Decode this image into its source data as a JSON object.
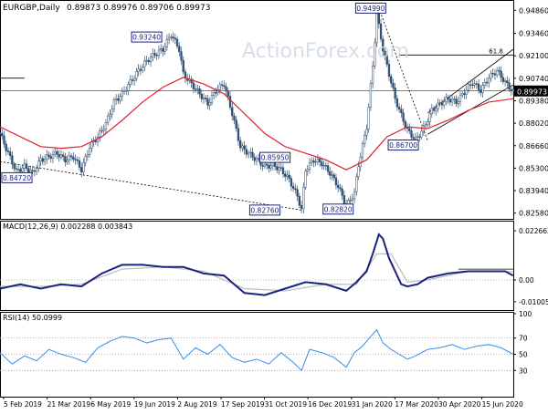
{
  "header": {
    "symbol": "EURGBP,Daily",
    "ohlc": "0.89873 0.89976 0.89706 0.89973"
  },
  "watermark": "ActionForex.com",
  "colors": {
    "price": "#2f4f6f",
    "ma": "#e0202a",
    "macd": "#1a237e",
    "signal": "#bdbdbd",
    "rsi": "#3a8ee6",
    "grid_dots": "#9e9e9e",
    "badge_border": "#1a237e",
    "current_price_bg": "#000000"
  },
  "chart_data": [
    {
      "type": "line",
      "name": "price",
      "title": "EURGBP,Daily",
      "y_ticks": [
        "0.94860",
        "0.93460",
        "0.92100",
        "0.90740",
        "0.89380",
        "0.88020",
        "0.86660",
        "0.85300",
        "0.83940",
        "0.82580"
      ],
      "ylim": [
        0.8245,
        0.9515
      ],
      "current_price_label": "0.89973",
      "fib_label": "61.8",
      "price_badges": [
        {
          "text": "0.93240",
          "x": 72,
          "y": 0.9324
        },
        {
          "text": "0.94990",
          "x": 182,
          "y": 0.9499
        },
        {
          "text": "0.84720",
          "x": -4,
          "y": 0.8472
        },
        {
          "text": "0.85950",
          "x": 135,
          "y": 0.8595
        },
        {
          "text": "0.82760",
          "x": 130,
          "y": 0.8276
        },
        {
          "text": "0.82820",
          "x": 166,
          "y": 0.8282
        },
        {
          "text": "0.86700",
          "x": 198,
          "y": 0.867
        }
      ],
      "close": [
        [
          0,
          0.874
        ],
        [
          4,
          0.862
        ],
        [
          8,
          0.851
        ],
        [
          12,
          0.854
        ],
        [
          16,
          0.85
        ],
        [
          20,
          0.858
        ],
        [
          24,
          0.86
        ],
        [
          28,
          0.862
        ],
        [
          32,
          0.858
        ],
        [
          36,
          0.86
        ],
        [
          40,
          0.852
        ],
        [
          44,
          0.866
        ],
        [
          48,
          0.872
        ],
        [
          52,
          0.88
        ],
        [
          56,
          0.893
        ],
        [
          60,
          0.898
        ],
        [
          64,
          0.905
        ],
        [
          68,
          0.912
        ],
        [
          72,
          0.918
        ],
        [
          76,
          0.922
        ],
        [
          80,
          0.925
        ],
        [
          84,
          0.934
        ],
        [
          88,
          0.925
        ],
        [
          90,
          0.91
        ],
        [
          94,
          0.904
        ],
        [
          98,
          0.898
        ],
        [
          102,
          0.892
        ],
        [
          106,
          0.9
        ],
        [
          110,
          0.904
        ],
        [
          114,
          0.886
        ],
        [
          118,
          0.866
        ],
        [
          122,
          0.862
        ],
        [
          126,
          0.858
        ],
        [
          130,
          0.854
        ],
        [
          134,
          0.855
        ],
        [
          138,
          0.852
        ],
        [
          142,
          0.846
        ],
        [
          146,
          0.836
        ],
        [
          148,
          0.828
        ],
        [
          150,
          0.852
        ],
        [
          154,
          0.858
        ],
        [
          158,
          0.856
        ],
        [
          162,
          0.85
        ],
        [
          166,
          0.842
        ],
        [
          170,
          0.83
        ],
        [
          174,
          0.838
        ],
        [
          176,
          0.855
        ],
        [
          180,
          0.878
        ],
        [
          183,
          0.915
        ],
        [
          185,
          0.946
        ],
        [
          188,
          0.925
        ],
        [
          191,
          0.91
        ],
        [
          194,
          0.895
        ],
        [
          197,
          0.885
        ],
        [
          200,
          0.876
        ],
        [
          204,
          0.87
        ],
        [
          208,
          0.877
        ],
        [
          212,
          0.888
        ],
        [
          216,
          0.892
        ],
        [
          220,
          0.895
        ],
        [
          224,
          0.893
        ],
        [
          228,
          0.899
        ],
        [
          232,
          0.905
        ],
        [
          236,
          0.9
        ],
        [
          240,
          0.908
        ],
        [
          244,
          0.912
        ],
        [
          248,
          0.905
        ],
        [
          252,
          0.899
        ]
      ],
      "ma": [
        [
          0,
          0.878
        ],
        [
          10,
          0.872
        ],
        [
          20,
          0.866
        ],
        [
          30,
          0.865
        ],
        [
          40,
          0.866
        ],
        [
          50,
          0.872
        ],
        [
          60,
          0.882
        ],
        [
          70,
          0.893
        ],
        [
          80,
          0.902
        ],
        [
          90,
          0.908
        ],
        [
          100,
          0.904
        ],
        [
          110,
          0.898
        ],
        [
          120,
          0.886
        ],
        [
          130,
          0.874
        ],
        [
          140,
          0.866
        ],
        [
          150,
          0.862
        ],
        [
          160,
          0.858
        ],
        [
          170,
          0.852
        ],
        [
          180,
          0.858
        ],
        [
          190,
          0.872
        ],
        [
          200,
          0.878
        ],
        [
          210,
          0.877
        ],
        [
          220,
          0.882
        ],
        [
          230,
          0.888
        ],
        [
          240,
          0.893
        ],
        [
          252,
          0.895
        ]
      ],
      "trendlines": [
        {
          "from": [
            0,
            0.857
          ],
          "to": [
            148,
            0.8276
          ],
          "dashed": true
        },
        {
          "from": [
            186,
            0.9499
          ],
          "to": [
            210,
            0.8695
          ],
          "dashed": true
        },
        {
          "from": [
            210,
            0.8865
          ],
          "to": [
            252,
            0.925
          ],
          "dashed": false
        },
        {
          "from": [
            210,
            0.8735
          ],
          "to": [
            252,
            0.9035
          ],
          "dashed": false
        },
        {
          "from": [
            196,
            0.9215
          ],
          "to": [
            252,
            0.9215
          ],
          "dashed": false
        },
        {
          "from": [
            0,
            0.9075
          ],
          "to": [
            12,
            0.9075
          ],
          "dashed": false
        }
      ]
    },
    {
      "type": "line",
      "name": "macd",
      "title": "MACD(12,26,9) 0.002288 0.003843",
      "y_ticks": [
        "0.022662",
        "0.00",
        "-0.010052"
      ],
      "ylim": [
        -0.0122,
        0.0248
      ],
      "macd": [
        [
          0,
          -0.004
        ],
        [
          10,
          -0.002
        ],
        [
          20,
          -0.004
        ],
        [
          30,
          -0.002
        ],
        [
          40,
          -0.003
        ],
        [
          50,
          0.003
        ],
        [
          60,
          0.007
        ],
        [
          70,
          0.007
        ],
        [
          80,
          0.006
        ],
        [
          90,
          0.006
        ],
        [
          100,
          0.003
        ],
        [
          110,
          0.002
        ],
        [
          120,
          -0.006
        ],
        [
          130,
          -0.007
        ],
        [
          140,
          -0.004
        ],
        [
          150,
          -0.001
        ],
        [
          160,
          -0.002
        ],
        [
          170,
          -0.005
        ],
        [
          175,
          -0.001
        ],
        [
          180,
          0.004
        ],
        [
          183,
          0.012
        ],
        [
          186,
          0.021
        ],
        [
          188,
          0.019
        ],
        [
          191,
          0.01
        ],
        [
          194,
          0.004
        ],
        [
          197,
          -0.002
        ],
        [
          200,
          -0.003
        ],
        [
          205,
          -0.002
        ],
        [
          210,
          0.001
        ],
        [
          220,
          0.003
        ],
        [
          230,
          0.004
        ],
        [
          240,
          0.004
        ],
        [
          248,
          0.004
        ],
        [
          252,
          0.002
        ]
      ],
      "signal": [
        [
          0,
          -0.003
        ],
        [
          20,
          -0.003
        ],
        [
          40,
          -0.002
        ],
        [
          60,
          0.005
        ],
        [
          80,
          0.006
        ],
        [
          100,
          0.004
        ],
        [
          120,
          -0.004
        ],
        [
          140,
          -0.005
        ],
        [
          160,
          -0.002
        ],
        [
          175,
          -0.002
        ],
        [
          185,
          0.012
        ],
        [
          192,
          0.012
        ],
        [
          200,
          -0.001
        ],
        [
          210,
          0.0
        ],
        [
          230,
          0.004
        ],
        [
          252,
          0.0038
        ]
      ],
      "level_line": {
        "from": 0.005,
        "x_from": 225,
        "x_to": 252
      }
    },
    {
      "type": "line",
      "name": "rsi",
      "title": "RSI(14) 50.0999",
      "y_ticks": [
        "100",
        "70",
        "50",
        "30"
      ],
      "ylim": [
        0,
        100
      ],
      "rsi": [
        [
          0,
          52
        ],
        [
          6,
          38
        ],
        [
          12,
          48
        ],
        [
          18,
          42
        ],
        [
          24,
          56
        ],
        [
          30,
          50
        ],
        [
          36,
          46
        ],
        [
          42,
          40
        ],
        [
          48,
          58
        ],
        [
          54,
          66
        ],
        [
          60,
          72
        ],
        [
          66,
          70
        ],
        [
          72,
          64
        ],
        [
          78,
          68
        ],
        [
          84,
          70
        ],
        [
          90,
          44
        ],
        [
          96,
          58
        ],
        [
          102,
          50
        ],
        [
          108,
          62
        ],
        [
          114,
          46
        ],
        [
          120,
          40
        ],
        [
          126,
          44
        ],
        [
          132,
          38
        ],
        [
          138,
          52
        ],
        [
          144,
          40
        ],
        [
          148,
          30
        ],
        [
          152,
          56
        ],
        [
          158,
          52
        ],
        [
          164,
          46
        ],
        [
          170,
          34
        ],
        [
          174,
          52
        ],
        [
          178,
          60
        ],
        [
          182,
          72
        ],
        [
          185,
          80
        ],
        [
          188,
          64
        ],
        [
          192,
          56
        ],
        [
          196,
          50
        ],
        [
          200,
          44
        ],
        [
          204,
          48
        ],
        [
          210,
          56
        ],
        [
          216,
          58
        ],
        [
          222,
          62
        ],
        [
          228,
          56
        ],
        [
          234,
          60
        ],
        [
          240,
          62
        ],
        [
          246,
          58
        ],
        [
          252,
          50
        ]
      ]
    }
  ],
  "x_axis": {
    "labels": [
      "5 Feb 2019",
      "21 Mar 2019",
      "6 May 2019",
      "19 Jun 2019",
      "2 Aug 2019",
      "17 Sep 2019",
      "31 Oct 2019",
      "16 Dec 2019",
      "31 Jan 2020",
      "17 Mar 2020",
      "30 Apr 2020",
      "15 Jun 2020"
    ]
  }
}
